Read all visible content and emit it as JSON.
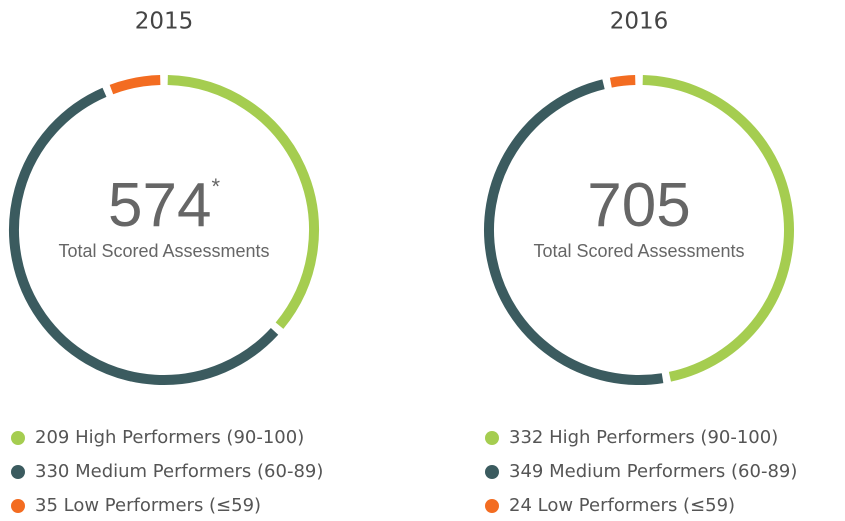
{
  "chart_data": [
    {
      "type": "donut",
      "title": "2015",
      "total": 574,
      "total_note": "*",
      "center_label": "Total Scored Assessments",
      "categories": [
        "High Performers (90-100)",
        "Medium Performers (60-89)",
        "Low Performers (≤59)"
      ],
      "values": [
        209,
        330,
        35
      ],
      "colors": [
        "#a5cd50",
        "#3b5b5f",
        "#f36c21"
      ]
    },
    {
      "type": "donut",
      "title": "2016",
      "total": 705,
      "center_label": "Total Scored Assessments",
      "categories": [
        "High Performers (90-100)",
        "Medium Performers (60-89)",
        "Low Performers (≤59)"
      ],
      "values": [
        332,
        349,
        24
      ],
      "colors": [
        "#a5cd50",
        "#3b5b5f",
        "#f36c21"
      ]
    }
  ]
}
